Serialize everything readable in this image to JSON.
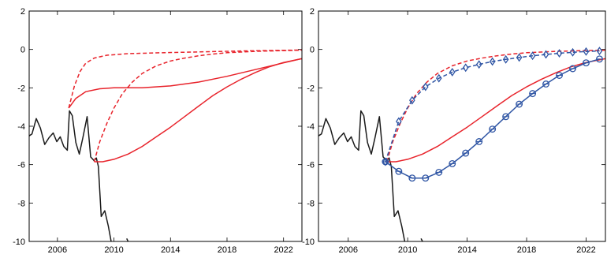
{
  "chart_data": [
    {
      "type": "line",
      "xlim": [
        2004,
        2023.3
      ],
      "ylim": [
        -10,
        2
      ],
      "xticks": [
        "2006",
        "2010",
        "2014",
        "2018",
        "2022"
      ],
      "yticks": [
        "2",
        "0",
        "-2",
        "-4",
        "-6",
        "-8",
        "-10"
      ],
      "series": [
        {
          "id": "history",
          "color": "#1a1a1a",
          "style": "solid",
          "segments": [
            [
              [
                2004.0,
                -4.5
              ],
              [
                2004.2,
                -4.4
              ],
              [
                2004.5,
                -3.6
              ],
              [
                2004.8,
                -4.1
              ],
              [
                2005.1,
                -4.95
              ],
              [
                2005.4,
                -4.6
              ],
              [
                2005.7,
                -4.35
              ],
              [
                2005.95,
                -4.8
              ],
              [
                2006.2,
                -4.55
              ],
              [
                2006.45,
                -5.05
              ],
              [
                2006.7,
                -5.25
              ],
              [
                2006.85,
                -3.2
              ],
              [
                2007.05,
                -3.45
              ],
              [
                2007.3,
                -4.85
              ],
              [
                2007.55,
                -5.45
              ],
              [
                2007.8,
                -4.6
              ],
              [
                2008.1,
                -3.5
              ],
              [
                2008.35,
                -5.6
              ],
              [
                2008.6,
                -5.8
              ],
              [
                2008.75,
                -5.65
              ],
              [
                2008.9,
                -6.1
              ],
              [
                2009.1,
                -8.7
              ],
              [
                2009.35,
                -8.4
              ],
              [
                2009.6,
                -9.2
              ],
              [
                2009.8,
                -10.0
              ]
            ],
            [
              [
                2010.9,
                -9.85
              ],
              [
                2011.0,
                -10.0
              ]
            ]
          ]
        },
        {
          "id": "projection-2007-solid",
          "color": "#e8232b",
          "style": "solid",
          "segments": [
            [
              [
                2006.8,
                -3.05
              ],
              [
                2007.3,
                -2.55
              ],
              [
                2008.0,
                -2.2
              ],
              [
                2009.0,
                -2.05
              ],
              [
                2010.0,
                -2.0
              ],
              [
                2012.0,
                -2.0
              ],
              [
                2014.0,
                -1.9
              ],
              [
                2016.0,
                -1.7
              ],
              [
                2018.0,
                -1.4
              ],
              [
                2020.0,
                -1.05
              ],
              [
                2022.0,
                -0.7
              ],
              [
                2023.3,
                -0.48
              ]
            ]
          ]
        },
        {
          "id": "projection-2007-dashed",
          "color": "#e8232b",
          "style": "dashed",
          "segments": [
            [
              [
                2006.8,
                -3.05
              ],
              [
                2007.2,
                -1.9
              ],
              [
                2007.6,
                -1.15
              ],
              [
                2008.0,
                -0.72
              ],
              [
                2008.6,
                -0.45
              ],
              [
                2009.5,
                -0.3
              ],
              [
                2011.0,
                -0.22
              ],
              [
                2013.0,
                -0.18
              ],
              [
                2016.0,
                -0.13
              ],
              [
                2019.0,
                -0.08
              ],
              [
                2023.3,
                -0.03
              ]
            ]
          ]
        },
        {
          "id": "projection-2008-solid",
          "color": "#e8232b",
          "style": "solid",
          "segments": [
            [
              [
                2008.6,
                -5.85
              ],
              [
                2009.2,
                -5.85
              ],
              [
                2010.0,
                -5.72
              ],
              [
                2011.0,
                -5.45
              ],
              [
                2012.0,
                -5.05
              ],
              [
                2013.0,
                -4.55
              ],
              [
                2014.0,
                -4.05
              ],
              [
                2015.0,
                -3.5
              ],
              [
                2016.0,
                -2.95
              ],
              [
                2017.0,
                -2.4
              ],
              [
                2018.0,
                -1.95
              ],
              [
                2019.0,
                -1.55
              ],
              [
                2020.0,
                -1.2
              ],
              [
                2021.0,
                -0.9
              ],
              [
                2022.0,
                -0.68
              ],
              [
                2023.3,
                -0.48
              ]
            ]
          ]
        },
        {
          "id": "projection-2008-dashed",
          "color": "#e8232b",
          "style": "dashed",
          "segments": [
            [
              [
                2008.6,
                -5.85
              ],
              [
                2009.0,
                -4.8
              ],
              [
                2009.5,
                -3.85
              ],
              [
                2010.0,
                -3.05
              ],
              [
                2010.6,
                -2.3
              ],
              [
                2011.3,
                -1.7
              ],
              [
                2012.0,
                -1.25
              ],
              [
                2013.0,
                -0.85
              ],
              [
                2014.0,
                -0.6
              ],
              [
                2015.0,
                -0.45
              ],
              [
                2016.0,
                -0.33
              ],
              [
                2017.0,
                -0.24
              ],
              [
                2018.0,
                -0.17
              ],
              [
                2020.0,
                -0.1
              ],
              [
                2022.0,
                -0.06
              ],
              [
                2023.3,
                -0.04
              ]
            ]
          ]
        }
      ]
    },
    {
      "type": "line",
      "xlim": [
        2004,
        2023.3
      ],
      "ylim": [
        -10,
        2
      ],
      "xticks": [
        "2006",
        "2010",
        "2014",
        "2018",
        "2022"
      ],
      "yticks": [
        "2",
        "0",
        "-2",
        "-4",
        "-6",
        "-8",
        "-10"
      ],
      "series": [
        {
          "id": "history",
          "color": "#1a1a1a",
          "style": "solid",
          "segments": [
            [
              [
                2004.0,
                -4.5
              ],
              [
                2004.2,
                -4.4
              ],
              [
                2004.5,
                -3.6
              ],
              [
                2004.8,
                -4.1
              ],
              [
                2005.1,
                -4.95
              ],
              [
                2005.4,
                -4.6
              ],
              [
                2005.7,
                -4.35
              ],
              [
                2005.95,
                -4.8
              ],
              [
                2006.2,
                -4.55
              ],
              [
                2006.45,
                -5.05
              ],
              [
                2006.7,
                -5.25
              ],
              [
                2006.85,
                -3.2
              ],
              [
                2007.05,
                -3.45
              ],
              [
                2007.3,
                -4.85
              ],
              [
                2007.55,
                -5.45
              ],
              [
                2007.8,
                -4.6
              ],
              [
                2008.1,
                -3.5
              ],
              [
                2008.35,
                -5.6
              ],
              [
                2008.6,
                -5.8
              ],
              [
                2008.75,
                -5.65
              ],
              [
                2008.9,
                -6.1
              ],
              [
                2009.1,
                -8.7
              ],
              [
                2009.35,
                -8.4
              ],
              [
                2009.6,
                -9.2
              ],
              [
                2009.8,
                -10.0
              ]
            ],
            [
              [
                2010.9,
                -9.85
              ],
              [
                2011.0,
                -10.0
              ]
            ]
          ]
        },
        {
          "id": "red-solid",
          "color": "#e8232b",
          "style": "solid",
          "segments": [
            [
              [
                2008.6,
                -5.85
              ],
              [
                2009.2,
                -5.85
              ],
              [
                2010.0,
                -5.72
              ],
              [
                2011.0,
                -5.45
              ],
              [
                2012.0,
                -5.05
              ],
              [
                2013.0,
                -4.55
              ],
              [
                2014.0,
                -4.05
              ],
              [
                2015.0,
                -3.5
              ],
              [
                2016.0,
                -2.95
              ],
              [
                2017.0,
                -2.4
              ],
              [
                2018.0,
                -1.95
              ],
              [
                2019.0,
                -1.55
              ],
              [
                2020.0,
                -1.2
              ],
              [
                2021.0,
                -0.9
              ],
              [
                2022.0,
                -0.68
              ],
              [
                2023.3,
                -0.48
              ]
            ]
          ]
        },
        {
          "id": "red-dashed",
          "color": "#e8232b",
          "style": "dashed",
          "segments": [
            [
              [
                2008.6,
                -5.85
              ],
              [
                2009.0,
                -4.8
              ],
              [
                2009.5,
                -3.85
              ],
              [
                2010.0,
                -3.05
              ],
              [
                2010.6,
                -2.3
              ],
              [
                2011.3,
                -1.7
              ],
              [
                2012.0,
                -1.25
              ],
              [
                2013.0,
                -0.85
              ],
              [
                2014.0,
                -0.6
              ],
              [
                2015.0,
                -0.45
              ],
              [
                2016.0,
                -0.33
              ],
              [
                2017.0,
                -0.24
              ],
              [
                2018.0,
                -0.17
              ],
              [
                2020.0,
                -0.1
              ],
              [
                2022.0,
                -0.06
              ],
              [
                2023.3,
                -0.04
              ]
            ]
          ]
        },
        {
          "id": "blue-solid-circles",
          "color": "#2f55a4",
          "style": "solid",
          "marker": "circle",
          "points": [
            [
              2008.5,
              -5.85
            ],
            [
              2009.4,
              -6.35
            ],
            [
              2010.3,
              -6.7
            ],
            [
              2011.2,
              -6.7
            ],
            [
              2012.1,
              -6.4
            ],
            [
              2013.0,
              -5.95
            ],
            [
              2013.9,
              -5.4
            ],
            [
              2014.8,
              -4.8
            ],
            [
              2015.7,
              -4.15
            ],
            [
              2016.6,
              -3.5
            ],
            [
              2017.5,
              -2.85
            ],
            [
              2018.4,
              -2.3
            ],
            [
              2019.3,
              -1.8
            ],
            [
              2020.2,
              -1.35
            ],
            [
              2021.1,
              -1.0
            ],
            [
              2022.0,
              -0.7
            ],
            [
              2022.9,
              -0.5
            ]
          ]
        },
        {
          "id": "blue-dashed-diamonds",
          "color": "#2f55a4",
          "style": "dashed",
          "marker": "diamond",
          "points": [
            [
              2008.5,
              -5.85
            ],
            [
              2009.4,
              -3.75
            ],
            [
              2010.3,
              -2.65
            ],
            [
              2011.2,
              -1.95
            ],
            [
              2012.1,
              -1.5
            ],
            [
              2013.0,
              -1.18
            ],
            [
              2013.9,
              -0.95
            ],
            [
              2014.8,
              -0.78
            ],
            [
              2015.7,
              -0.63
            ],
            [
              2016.6,
              -0.52
            ],
            [
              2017.5,
              -0.42
            ],
            [
              2018.4,
              -0.33
            ],
            [
              2019.3,
              -0.26
            ],
            [
              2020.2,
              -0.2
            ],
            [
              2021.1,
              -0.15
            ],
            [
              2022.0,
              -0.11
            ],
            [
              2022.9,
              -0.08
            ]
          ]
        }
      ]
    }
  ]
}
